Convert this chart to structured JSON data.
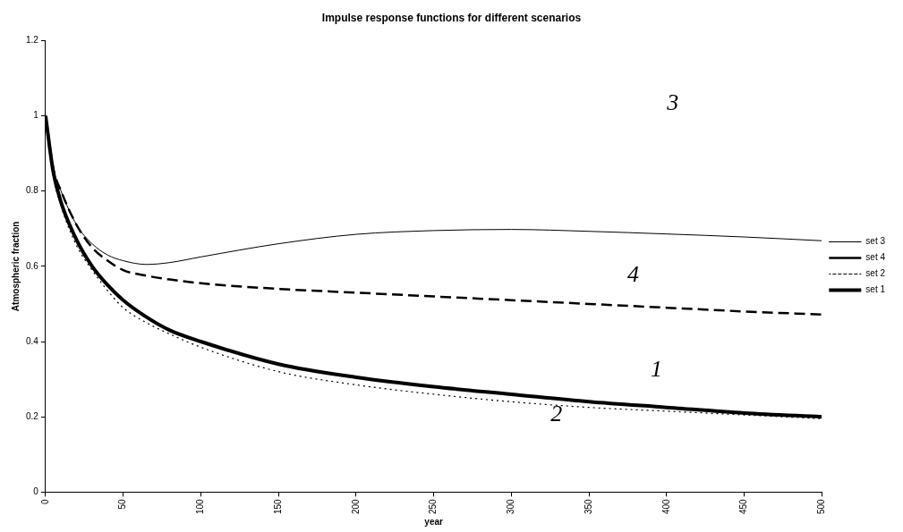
{
  "chart_data": {
    "type": "line",
    "title": "Impulse response functions for different scenarios",
    "xlabel": "year",
    "ylabel": "Atmospheric fraction",
    "xlim": [
      0,
      500
    ],
    "xticks": [
      0,
      50,
      100,
      150,
      200,
      250,
      300,
      350,
      400,
      450,
      500
    ],
    "ylim": [
      0,
      1.2
    ],
    "yticks": [
      0,
      0.2,
      0.4,
      0.6,
      0.8,
      1,
      1.2
    ],
    "grid": false,
    "legend": "right",
    "marker": "none",
    "x": [
      0,
      5,
      10,
      20,
      30,
      40,
      50,
      65,
      80,
      100,
      150,
      200,
      250,
      300,
      350,
      400,
      450,
      500
    ],
    "series": [
      {
        "name": "set 3",
        "color": "#000000",
        "line_style": "solid",
        "values": [
          1,
          0.86,
          0.8,
          0.71,
          0.66,
          0.63,
          0.615,
          0.605,
          0.61,
          0.625,
          0.66,
          0.685,
          0.695,
          0.698,
          0.693,
          0.686,
          0.678,
          0.668
        ]
      },
      {
        "name": "set 4",
        "color": "#000000",
        "line_style": "dashed",
        "values": [
          1,
          0.86,
          0.8,
          0.71,
          0.65,
          0.615,
          0.59,
          0.575,
          0.565,
          0.555,
          0.54,
          0.53,
          0.52,
          0.51,
          0.5,
          0.49,
          0.48,
          0.472
        ]
      },
      {
        "name": "set 2",
        "color": "#000000",
        "line_style": "dotted",
        "values": [
          1,
          0.84,
          0.76,
          0.655,
          0.59,
          0.535,
          0.49,
          0.45,
          0.42,
          0.385,
          0.32,
          0.285,
          0.26,
          0.24,
          0.225,
          0.215,
          0.205,
          0.195
        ]
      },
      {
        "name": "set 1",
        "color": "#000000",
        "line_style": "solid",
        "values": [
          1,
          0.85,
          0.77,
          0.67,
          0.6,
          0.55,
          0.51,
          0.465,
          0.43,
          0.4,
          0.34,
          0.305,
          0.28,
          0.26,
          0.24,
          0.225,
          0.21,
          0.2
        ]
      }
    ],
    "annotations": [
      "3",
      "4",
      "1",
      "2"
    ]
  }
}
